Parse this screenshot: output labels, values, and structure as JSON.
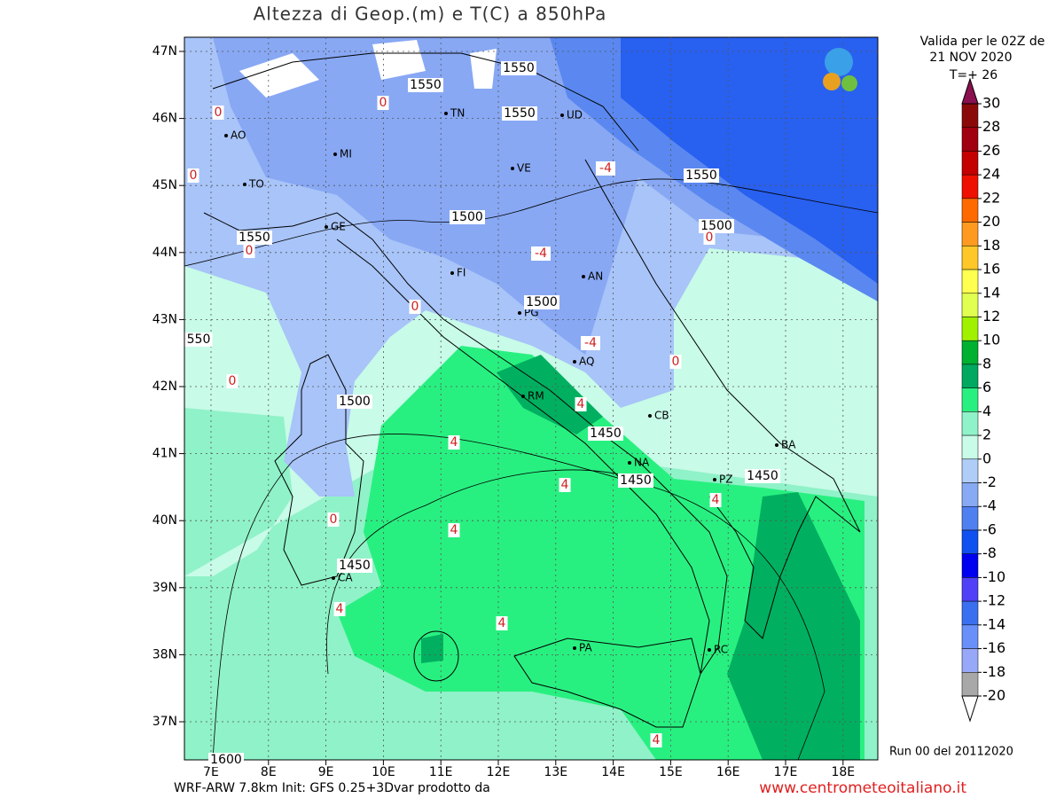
{
  "title": "Altezza di Geop.(m) e T(C) a 850hPa",
  "valid_lines": [
    "Valida per le 02Z de",
    "21 NOV 2020",
    "T=+ 26"
  ],
  "footer_left": "WRF-ARW 7.8km Init: GFS 0.25+3Dvar prodotto da",
  "footer_right": "www.centrometeoitaliano.it",
  "run": "Run 00 del 20112020",
  "lat_labels": [
    "47N",
    "46N",
    "45N",
    "44N",
    "43N",
    "42N",
    "41N",
    "40N",
    "39N",
    "38N",
    "37N"
  ],
  "lon_labels": [
    "7E",
    "8E",
    "9E",
    "10E",
    "11E",
    "12E",
    "13E",
    "14E",
    "15E",
    "16E",
    "17E",
    "18E"
  ],
  "cities": [
    "AO",
    "MI",
    "TO",
    "GE",
    "FI",
    "TN",
    "UD",
    "VE",
    "AN",
    "PG",
    "AQ",
    "RM",
    "CB",
    "NA",
    "BA",
    "PZ",
    "CA",
    "PA",
    "RC"
  ],
  "geopotential_labels": [
    "1550",
    "1550",
    "1550",
    "1550",
    "1500",
    "1500",
    "1550",
    "1500",
    "1500",
    "1450",
    "1450",
    "1450",
    "1450",
    "550",
    "1600"
  ],
  "temperature_labels": [
    "0",
    "0",
    "0",
    "-4",
    "-4",
    "0",
    "-4",
    "0",
    "0",
    "4",
    "4",
    "4",
    "4",
    "0",
    "4",
    "4",
    "4",
    "4",
    "0",
    "0"
  ],
  "colorbar": {
    "levels": [
      30,
      28,
      26,
      24,
      22,
      20,
      18,
      16,
      14,
      12,
      10,
      8,
      6,
      4,
      2,
      0,
      -2,
      -4,
      -6,
      -8,
      -10,
      -12,
      -14,
      -16,
      -18,
      -20
    ],
    "colors": [
      "#8a0a0a",
      "#a00010",
      "#c40000",
      "#ee1000",
      "#ff6a00",
      "#ff9a20",
      "#ffc828",
      "#ffff50",
      "#e0ff50",
      "#a0f000",
      "#00b030",
      "#00a860",
      "#28f080",
      "#90f2c8",
      "#c8fbe8",
      "#b0cdf8",
      "#88aaf4",
      "#5080f0",
      "#1050f0",
      "#0000f0",
      "#5040f8",
      "#3a70f0",
      "#6890f8",
      "#98a8f8",
      "#a8a8a8"
    ],
    "over_color": "#8a1050",
    "under_color": "#ffffff"
  }
}
